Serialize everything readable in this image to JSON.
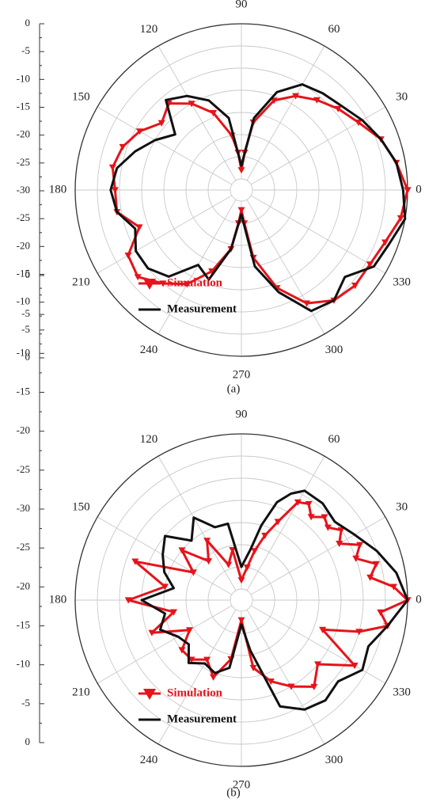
{
  "colors": {
    "simulation": "#e5141b",
    "measurement": "#111111",
    "grid": "#c9c9c9",
    "axis": "#333333"
  },
  "chart_data": [
    {
      "type": "polar",
      "caption": "(a)",
      "angle_labels": [
        "0",
        "30",
        "60",
        "90",
        "120",
        "150",
        "180",
        "210",
        "240",
        "270",
        "300",
        "330"
      ],
      "r_ticks": [
        "0",
        "-5",
        "-10",
        "-15",
        "-20",
        "-25",
        "-30",
        "-25",
        "-20",
        "-15",
        "-10",
        "-5",
        "0"
      ],
      "rlim": [
        -35,
        0
      ],
      "grid": true,
      "legend": {
        "position": "bottom-left",
        "entries": [
          "Simulation",
          "Measurement"
        ]
      },
      "series": [
        {
          "name": "Simulation",
          "color": "#e5141b",
          "marker": "triangle-down",
          "points": [
            [
              0,
              0
            ],
            [
              10,
              -2
            ],
            [
              20,
              -4
            ],
            [
              30,
              -7
            ],
            [
              40,
              -9
            ],
            [
              50,
              -11
            ],
            [
              60,
              -13
            ],
            [
              70,
              -16
            ],
            [
              80,
              -22
            ],
            [
              85,
              -29
            ],
            [
              90,
              -33
            ],
            [
              95,
              -29
            ],
            [
              100,
              -25
            ],
            [
              110,
              -19
            ],
            [
              120,
              -15
            ],
            [
              130,
              -12
            ],
            [
              140,
              -14
            ],
            [
              150,
              -11
            ],
            [
              160,
              -9
            ],
            [
              170,
              -8
            ],
            [
              180,
              -9
            ],
            [
              190,
              -9
            ],
            [
              200,
              -13
            ],
            [
              210,
              -8
            ],
            [
              220,
              -7
            ],
            [
              230,
              -10
            ],
            [
              240,
              -13
            ],
            [
              250,
              -18
            ],
            [
              260,
              -24
            ],
            [
              265,
              -30
            ],
            [
              270,
              -33
            ],
            [
              275,
              -30
            ],
            [
              280,
              -22
            ],
            [
              290,
              -14
            ],
            [
              300,
              -8
            ],
            [
              310,
              -5
            ],
            [
              320,
              -4
            ],
            [
              330,
              -4
            ],
            [
              340,
              -3
            ],
            [
              350,
              -1
            ],
            [
              360,
              0
            ]
          ]
        },
        {
          "name": "Measurement",
          "color": "#111111",
          "points": [
            [
              0,
              -1
            ],
            [
              10,
              -2
            ],
            [
              20,
              -4
            ],
            [
              30,
              -6
            ],
            [
              40,
              -8
            ],
            [
              50,
              -9
            ],
            [
              60,
              -10
            ],
            [
              70,
              -14
            ],
            [
              80,
              -21
            ],
            [
              90,
              -32
            ],
            [
              100,
              -21
            ],
            [
              110,
              -16
            ],
            [
              120,
              -13
            ],
            [
              130,
              -11
            ],
            [
              140,
              -18
            ],
            [
              150,
              -15
            ],
            [
              160,
              -12
            ],
            [
              170,
              -9
            ],
            [
              180,
              -8
            ],
            [
              190,
              -9
            ],
            [
              200,
              -12
            ],
            [
              210,
              -10
            ],
            [
              220,
              -10
            ],
            [
              230,
              -12
            ],
            [
              240,
              -18
            ],
            [
              250,
              -16
            ],
            [
              260,
              -24
            ],
            [
              270,
              -32
            ],
            [
              280,
              -20
            ],
            [
              290,
              -13
            ],
            [
              300,
              -6
            ],
            [
              310,
              -5
            ],
            [
              320,
              -7
            ],
            [
              330,
              -3
            ],
            [
              340,
              -2
            ],
            [
              350,
              0
            ],
            [
              360,
              -1
            ]
          ]
        }
      ]
    },
    {
      "type": "polar",
      "caption": "(b)",
      "angle_labels": [
        "0",
        "30",
        "60",
        "90",
        "120",
        "150",
        "180",
        "210",
        "240",
        "270",
        "300",
        "330"
      ],
      "r_ticks": [
        "0",
        "-5",
        "-10",
        "-15",
        "-20",
        "-25",
        "-30",
        "-25",
        "-20",
        "-15",
        "-10",
        "-5",
        "0"
      ],
      "rlim": [
        -35,
        0
      ],
      "grid": true,
      "legend": {
        "position": "bottom-left",
        "entries": [
          "Simulation",
          "Measurement"
        ]
      },
      "series": [
        {
          "name": "Simulation",
          "color": "#e5141b",
          "marker": "triangle-down",
          "points": [
            [
              0,
              0
            ],
            [
              5,
              -3
            ],
            [
              10,
              -8
            ],
            [
              15,
              -6
            ],
            [
              20,
              -10
            ],
            [
              25,
              -8
            ],
            [
              30,
              -12
            ],
            [
              35,
              -10
            ],
            [
              40,
              -12
            ],
            [
              45,
              -11
            ],
            [
              50,
              -13
            ],
            [
              55,
              -11
            ],
            [
              60,
              -12
            ],
            [
              65,
              -18
            ],
            [
              70,
              -22
            ],
            [
              75,
              -26
            ],
            [
              80,
              -30
            ],
            [
              90,
              -33
            ],
            [
              100,
              -26
            ],
            [
              110,
              -29
            ],
            [
              120,
              -22
            ],
            [
              130,
              -26
            ],
            [
              140,
              -20
            ],
            [
              150,
              -25
            ],
            [
              160,
              -12
            ],
            [
              170,
              -20
            ],
            [
              180,
              -12
            ],
            [
              190,
              -22
            ],
            [
              200,
              -16
            ],
            [
              210,
              -24
            ],
            [
              220,
              -20
            ],
            [
              230,
              -20
            ],
            [
              240,
              -22
            ],
            [
              250,
              -19
            ],
            [
              260,
              -24
            ],
            [
              270,
              -33
            ],
            [
              280,
              -22
            ],
            [
              290,
              -18
            ],
            [
              300,
              -15
            ],
            [
              310,
              -12
            ],
            [
              320,
              -15
            ],
            [
              330,
              -8
            ],
            [
              340,
              -18
            ],
            [
              345,
              -10
            ],
            [
              350,
              -4
            ],
            [
              355,
              -6
            ],
            [
              360,
              0
            ]
          ]
        },
        {
          "name": "Measurement",
          "color": "#111111",
          "points": [
            [
              0,
              0
            ],
            [
              10,
              -2
            ],
            [
              20,
              -5
            ],
            [
              30,
              -8
            ],
            [
              40,
              -10
            ],
            [
              50,
              -9
            ],
            [
              60,
              -9
            ],
            [
              65,
              -11
            ],
            [
              70,
              -14
            ],
            [
              75,
              -20
            ],
            [
              80,
              -26
            ],
            [
              90,
              -30
            ],
            [
              100,
              -20
            ],
            [
              110,
              -20
            ],
            [
              120,
              -16
            ],
            [
              130,
              -20
            ],
            [
              140,
              -15
            ],
            [
              150,
              -17
            ],
            [
              160,
              -19
            ],
            [
              170,
              -22
            ],
            [
              180,
              -15
            ],
            [
              190,
              -20
            ],
            [
              200,
              -18
            ],
            [
              210,
              -21
            ],
            [
              220,
              -22
            ],
            [
              230,
              -19
            ],
            [
              240,
              -21
            ],
            [
              250,
              -20
            ],
            [
              260,
              -22
            ],
            [
              270,
              -32
            ],
            [
              280,
              -26
            ],
            [
              290,
              -12
            ],
            [
              300,
              -9
            ],
            [
              310,
              -8
            ],
            [
              320,
              -9
            ],
            [
              330,
              -6
            ],
            [
              340,
              -7
            ],
            [
              350,
              -4
            ],
            [
              360,
              0
            ]
          ]
        }
      ]
    }
  ]
}
